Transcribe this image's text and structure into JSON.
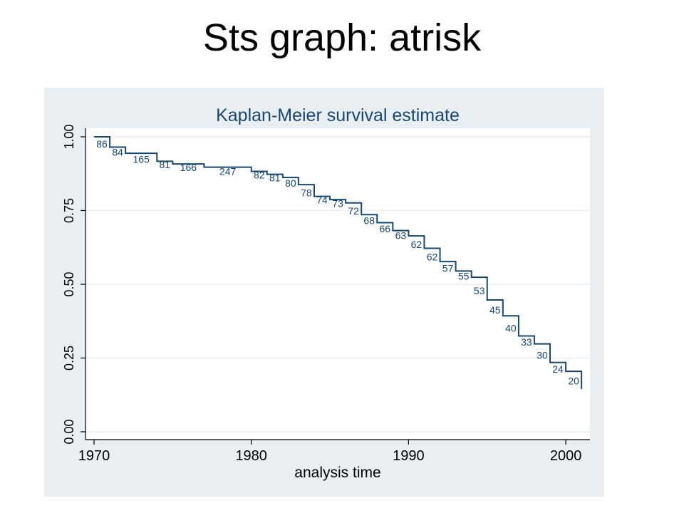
{
  "slide": {
    "title": "Sts graph:  atrisk"
  },
  "colors": {
    "plot_background": "#e8eef2",
    "line": "#1a476f",
    "grid": "#ffffff",
    "axis": "#000000"
  },
  "chart_data": {
    "type": "line",
    "title": "Kaplan-Meier survival estimate",
    "xlabel": "analysis time",
    "ylabel": "",
    "xlim": [
      1970,
      2001
    ],
    "ylim": [
      0,
      1
    ],
    "x_ticks": [
      "1970",
      "1980",
      "1990",
      "2000"
    ],
    "y_ticks": [
      "0.00",
      "0.25",
      "0.50",
      "0.75",
      "1.00"
    ],
    "grid": true,
    "legend": "none",
    "series": [
      {
        "steps": [
          {
            "x": 1970,
            "y": 1.0
          },
          {
            "x": 1971,
            "y": 0.965
          },
          {
            "x": 1972,
            "y": 0.944
          },
          {
            "x": 1974,
            "y": 0.917
          },
          {
            "x": 1975,
            "y": 0.908
          },
          {
            "x": 1977,
            "y": 0.897
          },
          {
            "x": 1980,
            "y": 0.883
          },
          {
            "x": 1981,
            "y": 0.873
          },
          {
            "x": 1982,
            "y": 0.862
          },
          {
            "x": 1983,
            "y": 0.838
          },
          {
            "x": 1984,
            "y": 0.798
          },
          {
            "x": 1985,
            "y": 0.787
          },
          {
            "x": 1986,
            "y": 0.776
          },
          {
            "x": 1987,
            "y": 0.736
          },
          {
            "x": 1988,
            "y": 0.709
          },
          {
            "x": 1989,
            "y": 0.682
          },
          {
            "x": 1990,
            "y": 0.664
          },
          {
            "x": 1991,
            "y": 0.622
          },
          {
            "x": 1992,
            "y": 0.577
          },
          {
            "x": 1993,
            "y": 0.545
          },
          {
            "x": 1994,
            "y": 0.524
          },
          {
            "x": 1995,
            "y": 0.447
          },
          {
            "x": 1996,
            "y": 0.393
          },
          {
            "x": 1997,
            "y": 0.325
          },
          {
            "x": 1998,
            "y": 0.298
          },
          {
            "x": 1999,
            "y": 0.235
          },
          {
            "x": 2000,
            "y": 0.205
          },
          {
            "x": 2001,
            "y": 0.155
          }
        ],
        "at_risk_labels": [
          {
            "x": 1970.5,
            "y": 0.983,
            "text": "86"
          },
          {
            "x": 1971.5,
            "y": 0.955,
            "text": "84"
          },
          {
            "x": 1973,
            "y": 0.931,
            "text": "165"
          },
          {
            "x": 1974.5,
            "y": 0.913,
            "text": "81"
          },
          {
            "x": 1976,
            "y": 0.903,
            "text": "166"
          },
          {
            "x": 1978.5,
            "y": 0.89,
            "text": "247"
          },
          {
            "x": 1980.5,
            "y": 0.878,
            "text": "82"
          },
          {
            "x": 1981.5,
            "y": 0.868,
            "text": "81"
          },
          {
            "x": 1982.5,
            "y": 0.85,
            "text": "80"
          },
          {
            "x": 1983.5,
            "y": 0.818,
            "text": "78"
          },
          {
            "x": 1984.5,
            "y": 0.793,
            "text": "74"
          },
          {
            "x": 1985.5,
            "y": 0.782,
            "text": "73"
          },
          {
            "x": 1986.5,
            "y": 0.756,
            "text": "72"
          },
          {
            "x": 1987.5,
            "y": 0.723,
            "text": "68"
          },
          {
            "x": 1988.5,
            "y": 0.696,
            "text": "66"
          },
          {
            "x": 1989.5,
            "y": 0.673,
            "text": "63"
          },
          {
            "x": 1990.5,
            "y": 0.643,
            "text": "62"
          },
          {
            "x": 1991.5,
            "y": 0.6,
            "text": "62"
          },
          {
            "x": 1992.5,
            "y": 0.561,
            "text": "57"
          },
          {
            "x": 1993.5,
            "y": 0.535,
            "text": "55"
          },
          {
            "x": 1994.5,
            "y": 0.486,
            "text": "53"
          },
          {
            "x": 1995.5,
            "y": 0.42,
            "text": "45"
          },
          {
            "x": 1996.5,
            "y": 0.359,
            "text": "40"
          },
          {
            "x": 1997.5,
            "y": 0.312,
            "text": "33"
          },
          {
            "x": 1998.5,
            "y": 0.267,
            "text": "30"
          },
          {
            "x": 1999.5,
            "y": 0.22,
            "text": "24"
          },
          {
            "x": 2000.5,
            "y": 0.18,
            "text": "20"
          }
        ]
      }
    ]
  }
}
